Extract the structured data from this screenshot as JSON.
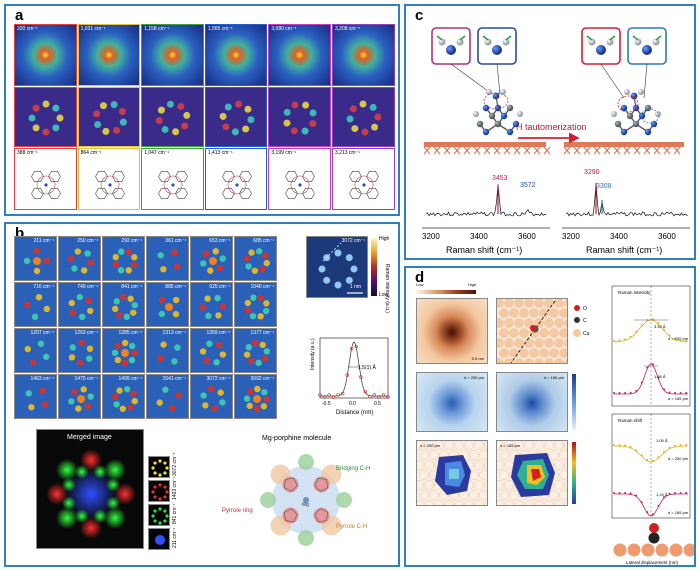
{
  "panel_a": {
    "label": "a",
    "row1": [
      "320 cm⁻¹",
      "1,031 cm⁻¹",
      "1,158 cm⁻¹",
      "1,565 cm⁻¹",
      "3,080 cm⁻¹",
      "3,208 cm⁻¹"
    ],
    "row3": [
      "388 cm⁻¹",
      "864 cm⁻¹",
      "1,047 cm⁻¹",
      "1,413 cm⁻¹",
      "3,199 cm⁻¹",
      "3,213 cm⁻¹"
    ],
    "colors": [
      "#e04040",
      "#e0c040",
      "#40a040",
      "#2060d0",
      "#c040c0",
      "#9040c0"
    ]
  },
  "panel_b": {
    "label": "b",
    "grid": [
      [
        "211 cm⁻¹",
        "250 cm⁻¹",
        "292 cm⁻¹",
        "361 cm⁻¹",
        "653 cm⁻¹",
        "685 cm⁻¹"
      ],
      [
        "716 cm⁻¹",
        "749 cm⁻¹",
        "841 cm⁻¹",
        "885 cm⁻¹",
        "925 cm⁻¹",
        "1040 cm⁻¹"
      ],
      [
        "1207 cm⁻¹",
        "1263 cm⁻¹",
        "1285 cm⁻¹",
        "1313 cm⁻¹",
        "1359 cm⁻¹",
        "1377 cm⁻¹"
      ],
      [
        "1463 cm⁻¹",
        "1475 cm⁻¹",
        "1499 cm⁻¹",
        "1541 cm⁻¹",
        "3072 cm⁻¹",
        "3092 cm⁻¹"
      ]
    ],
    "big_map_label": "3072 cm⁻¹",
    "colorbar_high": "High",
    "colorbar_low": "Low",
    "colorbar_title": "Raman intensity (a.u.)",
    "scalebar": "1 nm",
    "profile": {
      "ylabel": "Intensity (a.u.)",
      "xlabel": "Distance (nm)",
      "annotation": "1.5(1) Å",
      "ticks": [
        "-0.5",
        "0.0",
        "0.5"
      ]
    },
    "merged_title": "Merged image",
    "side_labels": [
      "3072 cm⁻¹",
      "1463 cm⁻¹",
      "841 cm⁻¹",
      "211 cm⁻¹"
    ],
    "molecule_title": "Mg-porphine molecule",
    "molecule_labels": [
      "Bridging C-H",
      "Pyrrole ring",
      "Pyrrole C-H",
      "Mg"
    ]
  },
  "panel_c": {
    "label": "c",
    "arrow_text": "H tautomerization",
    "left_peaks": [
      "3453",
      "3572"
    ],
    "right_peaks": [
      "3290",
      "3308"
    ],
    "xticks": [
      "3200",
      "3400",
      "3600"
    ],
    "xlabel": "Raman shift (cm⁻¹)"
  },
  "panel_d": {
    "label": "d",
    "colorbar_low": "Low",
    "colorbar_high": "High",
    "legend": [
      "O",
      "C",
      "Cu"
    ],
    "top_right_title": "Raman intensity",
    "top_right_ann": [
      "3.59 Å",
      "1.65 Å"
    ],
    "top_right_d": [
      "d = 250 pm",
      "d = 185 pm"
    ],
    "mid_right_title": "Raman shift",
    "mid_right_ann": [
      "1.06 Å",
      "1.24 Å"
    ],
    "mid_right_d": [
      "d = 250 pm",
      "d = 185 pm"
    ],
    "map_d": [
      "d = 250 pm",
      "d = 185 pm",
      "d = 250 pm",
      "d = 185 pm"
    ],
    "scale": "0.5 nm",
    "xaxis": "Lateral displacement (nm)"
  }
}
